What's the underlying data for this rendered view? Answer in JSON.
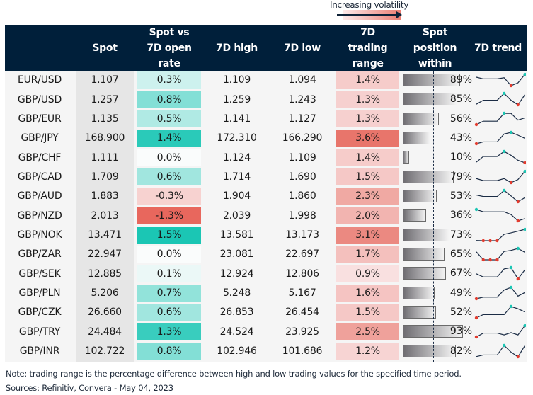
{
  "legend": {
    "label": "Increasing volatility"
  },
  "headers": {
    "pair": "",
    "spot": "Spot",
    "spot_vs_open": "Spot vs 7D open rate",
    "high": "7D high",
    "low": "7D low",
    "range": "7D trading range",
    "position": "Spot position within",
    "trend": "7D trend"
  },
  "colors": {
    "header_bg": "#001f3a",
    "positive": "#1bc6b4",
    "negative": "#e8675d",
    "range_high": "#e8756b",
    "trend_line": "#1b2c45",
    "trend_max": "#1bc6b4",
    "trend_min": "#e33b2e"
  },
  "rows": [
    {
      "pair": "EUR/USD",
      "spot": "1.107",
      "vs_open": "0.3%",
      "high": "1.109",
      "low": "1.094",
      "range": "1.4%",
      "position": "89%",
      "trend": [
        0.75,
        0.6,
        0.6,
        0.6,
        0.7,
        0,
        0.25,
        1
      ]
    },
    {
      "pair": "GBP/USD",
      "spot": "1.257",
      "vs_open": "0.8%",
      "high": "1.259",
      "low": "1.243",
      "range": "1.3%",
      "position": "85%",
      "trend": [
        0.05,
        0.4,
        0.4,
        0.4,
        1,
        0.4,
        0,
        0.9
      ]
    },
    {
      "pair": "GBP/EUR",
      "spot": "1.135",
      "vs_open": "0.5%",
      "high": "1.141",
      "low": "1.127",
      "range": "1.3%",
      "position": "56%",
      "trend": [
        0,
        0.3,
        0.3,
        0.3,
        1,
        0.99,
        0.4,
        0.6
      ]
    },
    {
      "pair": "GBP/JPY",
      "spot": "168.900",
      "vs_open": "1.4%",
      "high": "172.310",
      "low": "166.290",
      "range": "3.6%",
      "position": "43%",
      "trend": [
        0,
        0.16,
        0.16,
        0.16,
        0.86,
        1,
        0.75,
        0.47
      ]
    },
    {
      "pair": "GBP/CHF",
      "spot": "1.111",
      "vs_open": "0.0%",
      "high": "1.124",
      "low": "1.109",
      "range": "1.4%",
      "position": "10%",
      "trend": [
        0.06,
        0.56,
        0.56,
        0.56,
        1,
        0.66,
        0.22,
        0
      ]
    },
    {
      "pair": "GBP/CAD",
      "spot": "1.709",
      "vs_open": "0.6%",
      "high": "1.714",
      "low": "1.690",
      "range": "1.5%",
      "position": "79%",
      "trend": [
        0.36,
        0.18,
        0.18,
        0.18,
        0.36,
        0,
        0.27,
        1
      ]
    },
    {
      "pair": "GBP/AUD",
      "spot": "1.883",
      "vs_open": "-0.3%",
      "high": "1.904",
      "low": "1.860",
      "range": "2.3%",
      "position": "53%",
      "trend": [
        0.59,
        0.46,
        0.46,
        0.46,
        1,
        0.51,
        0,
        0.37
      ]
    },
    {
      "pair": "GBP/NZD",
      "spot": "2.013",
      "vs_open": "-1.3%",
      "high": "2.039",
      "low": "1.998",
      "range": "2.0%",
      "position": "36%",
      "trend": [
        1,
        0.8,
        0.8,
        0.8,
        0.8,
        0.55,
        0,
        0.2
      ]
    },
    {
      "pair": "GBP/NOK",
      "spot": "13.471",
      "vs_open": "1.5%",
      "high": "13.581",
      "low": "13.173",
      "range": "3.1%",
      "position": "73%",
      "trend": [
        0.02,
        0,
        0,
        0,
        0.56,
        0.69,
        0.84,
        1
      ]
    },
    {
      "pair": "GBP/ZAR",
      "spot": "22.947",
      "vs_open": "0.0%",
      "high": "23.081",
      "low": "22.697",
      "range": "1.7%",
      "position": "65%",
      "trend": [
        0.7,
        0,
        0,
        0,
        0.74,
        0.83,
        1,
        0.66
      ]
    },
    {
      "pair": "GBP/SEK",
      "spot": "12.885",
      "vs_open": "0.1%",
      "high": "12.924",
      "low": "12.806",
      "range": "0.9%",
      "position": "67%",
      "trend": [
        0.45,
        0.17,
        0.17,
        0.17,
        0.88,
        1,
        0,
        0.81
      ]
    },
    {
      "pair": "GBP/PLN",
      "spot": "5.206",
      "vs_open": "0.7%",
      "high": "5.248",
      "low": "5.167",
      "range": "1.6%",
      "position": "49%",
      "trend": [
        0,
        0.14,
        0.14,
        0.14,
        0.77,
        1,
        0.23,
        0.55
      ]
    },
    {
      "pair": "GBP/CZK",
      "spot": "26.660",
      "vs_open": "0.6%",
      "high": "26.853",
      "low": "26.454",
      "range": "1.5%",
      "position": "52%",
      "trend": [
        0,
        0.29,
        0.29,
        0.29,
        0.29,
        1,
        0.8,
        0.52
      ]
    },
    {
      "pair": "GBP/TRY",
      "spot": "24.484",
      "vs_open": "1.3%",
      "high": "24.524",
      "low": "23.925",
      "range": "2.5%",
      "position": "93%",
      "trend": [
        0,
        0.34,
        0.34,
        0.34,
        0.18,
        0.38,
        0.18,
        1
      ]
    },
    {
      "pair": "GBP/INR",
      "spot": "102.722",
      "vs_open": "0.8%",
      "high": "102.946",
      "low": "101.686",
      "range": "1.2%",
      "position": "82%",
      "trend": [
        0.02,
        0.16,
        0.16,
        0.16,
        1,
        0.41,
        0,
        0.99
      ]
    }
  ],
  "footer": {
    "note": "Note: trading range is the percentage difference between high and low trading values for the specified time period.",
    "sources": "Sources: Refinitiv, Convera - May 04, 2023"
  }
}
